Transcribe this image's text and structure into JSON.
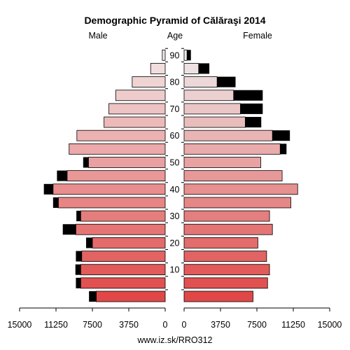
{
  "chart_data": {
    "type": "bar",
    "subtype": "population-pyramid",
    "title": "Demographic Pyramid of Călăraşi 2014",
    "left_label": "Male",
    "center_label": "Age",
    "right_label": "Female",
    "footer": "www.iz.sk/RRO312",
    "xlim": [
      0,
      15000
    ],
    "x_ticks": [
      "15000",
      "11250",
      "7500",
      "3750",
      "0",
      "0",
      "3750",
      "7500",
      "11250",
      "15000"
    ],
    "age_ticks": [
      "10",
      "20",
      "30",
      "40",
      "50",
      "60",
      "70",
      "80",
      "90"
    ],
    "age_groups": [
      "0-4",
      "5-9",
      "10-14",
      "15-19",
      "20-24",
      "25-29",
      "30-34",
      "35-39",
      "40-44",
      "45-49",
      "50-54",
      "55-59",
      "60-64",
      "65-69",
      "70-74",
      "75-79",
      "80-84",
      "85-89",
      "90+"
    ],
    "series": [
      {
        "name": "Male",
        "values": [
          7100,
          8700,
          8700,
          8600,
          7500,
          9200,
          8700,
          11000,
          11550,
          10100,
          7900,
          9900,
          9100,
          6300,
          5800,
          5100,
          3400,
          1500,
          300
        ],
        "excess": [
          750,
          500,
          550,
          600,
          650,
          1350,
          450,
          550,
          950,
          1050,
          550,
          0,
          0,
          0,
          0,
          0,
          0,
          0,
          0
        ]
      },
      {
        "name": "Female",
        "values": [
          7100,
          8600,
          8800,
          8500,
          7600,
          9100,
          8800,
          11000,
          11700,
          10100,
          7900,
          9900,
          9100,
          6300,
          5800,
          5100,
          3400,
          1500,
          300
        ],
        "excess": [
          0,
          0,
          0,
          0,
          0,
          0,
          0,
          0,
          0,
          0,
          0,
          650,
          1800,
          1650,
          2300,
          3000,
          1900,
          1100,
          400
        ]
      }
    ],
    "colors": {
      "male_young": "#e04848",
      "male_old": "#f2e6e6",
      "female_young": "#e04848",
      "female_old": "#eeeaea",
      "excess": "#000000"
    }
  }
}
